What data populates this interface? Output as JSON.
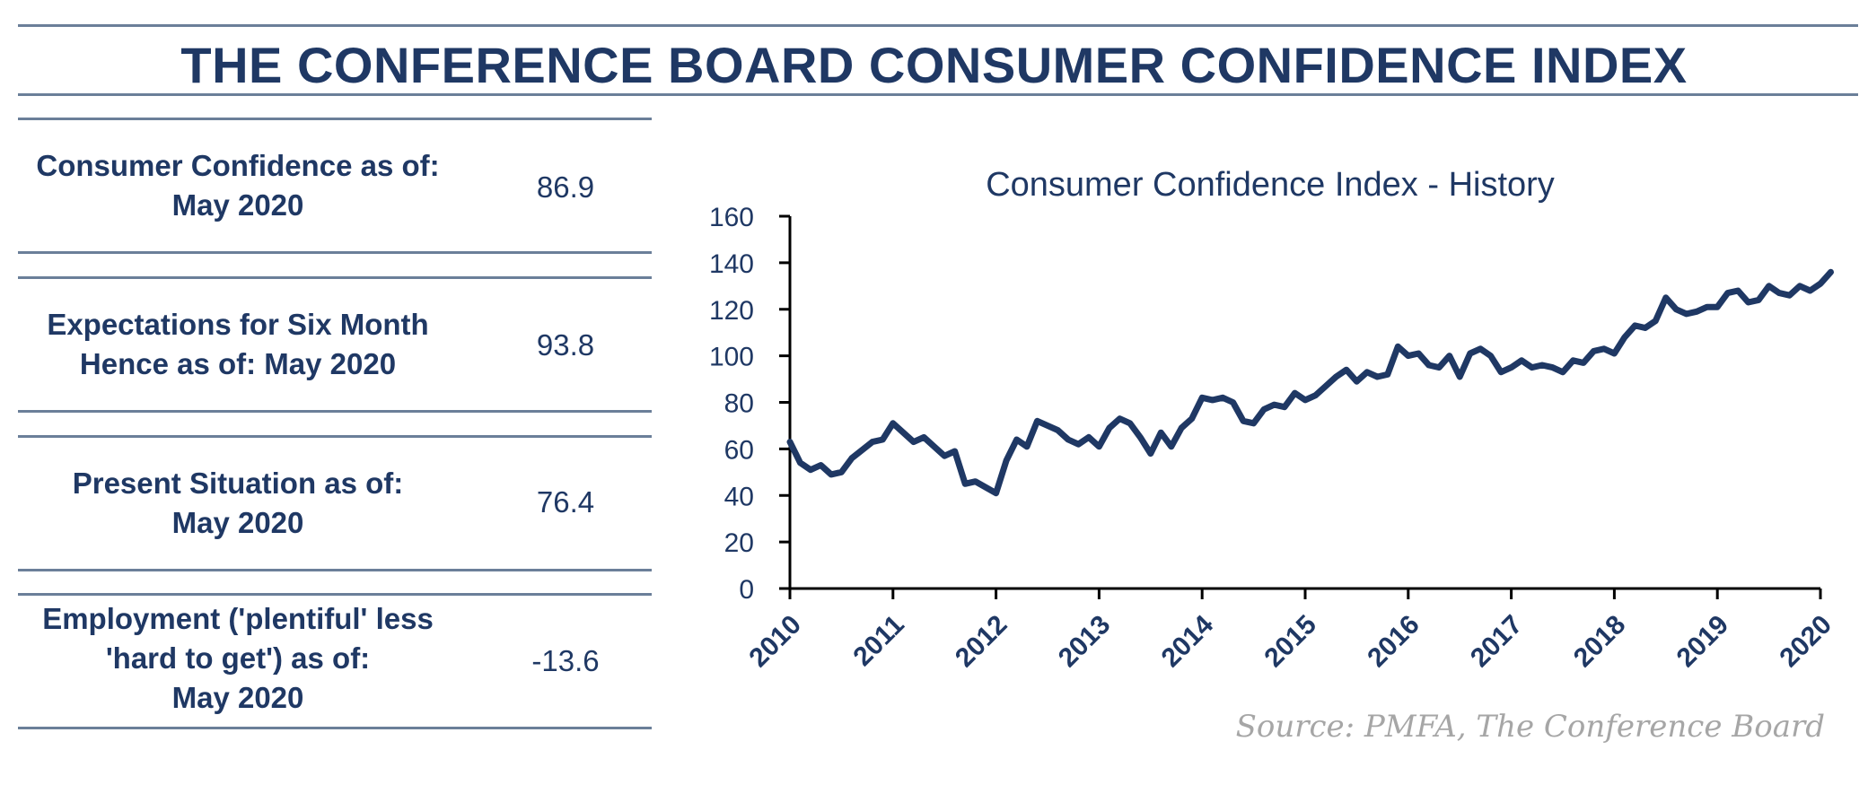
{
  "header": {
    "title": "THE CONFERENCE BOARD CONSUMER CONFIDENCE INDEX"
  },
  "metrics": [
    {
      "label_lines": [
        "Consumer Confidence as of:",
        "May 2020"
      ],
      "value": "86.9"
    },
    {
      "label_lines": [
        "Expectations for Six Month",
        "Hence as of: May 2020"
      ],
      "value": "93.8"
    },
    {
      "label_lines": [
        "Present Situation as of:",
        "May 2020"
      ],
      "value": "76.4"
    },
    {
      "label_lines": [
        "Employment ('plentiful' less",
        "'hard to get') as of:",
        "May 2020"
      ],
      "value": "-13.6"
    }
  ],
  "source": "Source:  PMFA,  The Conference Board",
  "chart_data": {
    "type": "line",
    "title": "Consumer Confidence Index - History",
    "xlabel": "",
    "ylabel": "",
    "ylim": [
      0,
      160
    ],
    "yticks": [
      "0",
      "20",
      "40",
      "60",
      "80",
      "100",
      "120",
      "140",
      "160"
    ],
    "xlim": [
      2010,
      2020
    ],
    "xticks": [
      "2010",
      "2011",
      "2012",
      "2013",
      "2014",
      "2015",
      "2016",
      "2017",
      "2018",
      "2019",
      "2020"
    ],
    "grid": false,
    "line_color": "#1f3864",
    "series": [
      {
        "x": [
          2010.0,
          2010.1,
          2010.2,
          2010.3,
          2010.4,
          2010.5,
          2010.6,
          2010.8,
          2010.9,
          2011.0,
          2011.2,
          2011.3,
          2011.4,
          2011.5,
          2011.6,
          2011.7,
          2011.8,
          2012.0,
          2012.1,
          2012.2,
          2012.3,
          2012.4,
          2012.5,
          2012.6,
          2012.7,
          2012.8,
          2012.9,
          2013.0,
          2013.1,
          2013.2,
          2013.3,
          2013.4,
          2013.5,
          2013.6,
          2013.7,
          2013.8,
          2013.9,
          2014.0,
          2014.1,
          2014.2,
          2014.3,
          2014.4,
          2014.5,
          2014.6,
          2014.7,
          2014.8,
          2014.9,
          2015.0,
          2015.1,
          2015.2,
          2015.3,
          2015.4,
          2015.5,
          2015.6,
          2015.7,
          2015.8,
          2015.9,
          2016.0,
          2016.1,
          2016.2,
          2016.3,
          2016.4,
          2016.5,
          2016.6,
          2016.7,
          2016.8,
          2016.9,
          2017.0,
          2017.1,
          2017.2,
          2017.3,
          2017.4,
          2017.5,
          2017.6,
          2017.7,
          2017.8,
          2017.9,
          2018.0,
          2018.1,
          2018.2,
          2018.3,
          2018.4,
          2018.5,
          2018.6,
          2018.7,
          2018.8,
          2018.9,
          2019.0,
          2019.1,
          2019.2,
          2019.3,
          2019.4,
          2019.5,
          2019.6,
          2019.7,
          2019.8,
          2019.9,
          2020.0,
          2020.1
        ],
        "y": [
          63,
          54,
          51,
          53,
          49,
          50,
          56,
          63,
          64,
          71,
          63,
          65,
          61,
          57,
          59,
          45,
          46,
          41,
          55,
          64,
          61,
          72,
          70,
          68,
          64,
          62,
          65,
          61,
          69,
          73,
          71,
          65,
          58,
          67,
          61,
          69,
          73,
          82,
          81,
          82,
          80,
          72,
          71,
          77,
          79,
          78,
          84,
          81,
          83,
          87,
          91,
          94,
          89,
          93,
          91,
          92,
          104,
          100,
          101,
          96,
          95,
          100,
          91,
          101,
          103,
          100,
          93,
          95,
          98,
          95,
          96,
          95,
          93,
          98,
          97,
          102,
          103,
          101,
          108,
          113,
          112,
          115,
          125,
          120,
          118,
          119,
          121,
          121,
          127,
          128,
          123,
          124,
          130,
          127,
          126,
          130,
          128,
          131,
          136
        ]
      }
    ]
  }
}
